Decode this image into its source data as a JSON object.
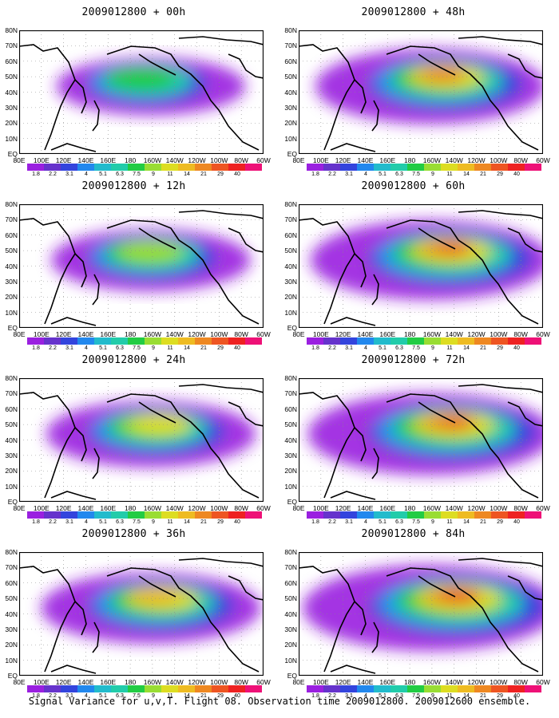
{
  "caption": "Signal Variance for u,v,T. Flight 08. Observation time 2009012800. 2009012600 ensemble.",
  "y_axis_labels": [
    "80N",
    "70N",
    "60N",
    "50N",
    "40N",
    "30N",
    "20N",
    "10N",
    "EQ"
  ],
  "x_axis_labels": [
    "80E",
    "100E",
    "120E",
    "140E",
    "160E",
    "180",
    "160W",
    "140W",
    "120W",
    "100W",
    "80W",
    "60W"
  ],
  "colorbar": {
    "labels": [
      "1.8",
      "2.2",
      "3.1",
      "4",
      "5.1",
      "6.3",
      "7.5",
      "9",
      "11",
      "14",
      "21",
      "29",
      "40"
    ],
    "colors": [
      "#9a20e0",
      "#6633cc",
      "#3344dd",
      "#2288ee",
      "#22bbcc",
      "#22ccaa",
      "#22cc44",
      "#99dd33",
      "#dddd22",
      "#eebb22",
      "#ee8822",
      "#ee5522",
      "#ee2222",
      "#ee1177"
    ]
  },
  "panels": [
    {
      "title": "2009012800 + 00h",
      "intensity": 0.35
    },
    {
      "title": "2009012800 + 48h",
      "intensity": 0.75
    },
    {
      "title": "2009012800 + 12h",
      "intensity": 0.45
    },
    {
      "title": "2009012800 + 60h",
      "intensity": 0.85
    },
    {
      "title": "2009012800 + 24h",
      "intensity": 0.55
    },
    {
      "title": "2009012800 + 72h",
      "intensity": 0.9
    },
    {
      "title": "2009012800 + 36h",
      "intensity": 0.65
    },
    {
      "title": "2009012800 + 84h",
      "intensity": 1.0
    }
  ]
}
